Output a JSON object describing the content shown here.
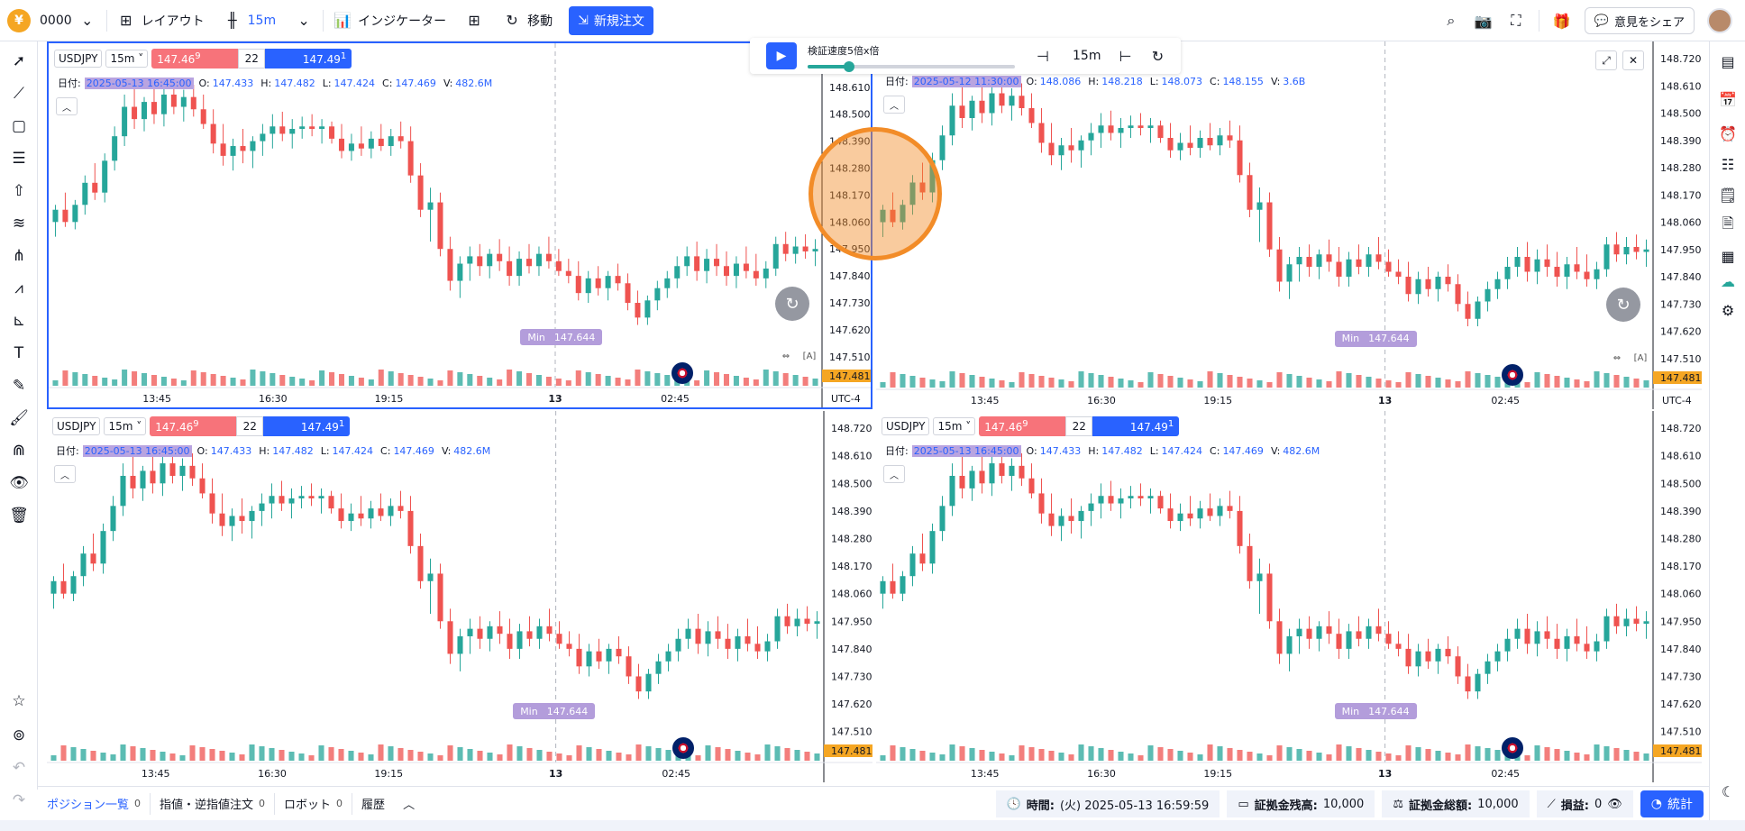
{
  "topbar": {
    "account": "0000",
    "layout": "レイアウト",
    "timeframe": "15m",
    "indicators": "インジケーター",
    "move": "移動",
    "new_order": "新規注文",
    "opinion": "意見をシェア"
  },
  "replay": {
    "speed_label": "検証速度5倍x倍",
    "speed_fraction": 0.2,
    "timeframe": "15m"
  },
  "price_axis_labels": [
    "148.720",
    "148.610",
    "148.500",
    "148.390",
    "148.280",
    "148.170",
    "148.060",
    "147.950",
    "147.840",
    "147.730",
    "147.620",
    "147.510"
  ],
  "time_axis_labels": [
    "13:45",
    "16:30",
    "19:15",
    "13",
    "02:45"
  ],
  "timezone": "UTC-4",
  "panes": [
    {
      "symbol": "USDJPY",
      "tf": "15m",
      "bid": "147.46",
      "bid_sup": "9",
      "spread": "22",
      "ask": "147.49",
      "ask_sup": "1",
      "date_label": "日付:",
      "date": "2025-05-13 16:45:00",
      "o_label": "O:",
      "o": "147.433",
      "h_label": "H:",
      "h": "147.482",
      "l_label": "L:",
      "l": "147.424",
      "c_label": "C:",
      "c": "147.469",
      "v_label": "V:",
      "v": "482.6M",
      "min_label": "Min",
      "min_value": "147.644",
      "last_price": "147.481"
    },
    {
      "symbol": "USDJPY",
      "tf": "15m",
      "bid": "147.46",
      "bid_sup": "9",
      "spread": "22",
      "ask": "147.49",
      "ask_sup": "1",
      "date_label": "日付:",
      "date": "2025-05-12 11:30:00",
      "o_label": "O:",
      "o": "148.086",
      "h_label": "H:",
      "h": "148.218",
      "l_label": "L:",
      "l": "148.073",
      "c_label": "C:",
      "c": "148.155",
      "v_label": "V:",
      "v": "3.6B",
      "min_label": "Min",
      "min_value": "147.644",
      "last_price": "147.481"
    },
    {
      "symbol": "USDJPY",
      "tf": "15m",
      "bid": "147.46",
      "bid_sup": "9",
      "spread": "22",
      "ask": "147.49",
      "ask_sup": "1",
      "date_label": "日付:",
      "date": "2025-05-13 16:45:00",
      "o_label": "O:",
      "o": "147.433",
      "h_label": "H:",
      "h": "147.482",
      "l_label": "L:",
      "l": "147.424",
      "c_label": "C:",
      "c": "147.469",
      "v_label": "V:",
      "v": "482.6M",
      "min_label": "Min",
      "min_value": "147.644",
      "last_price": "147.481"
    },
    {
      "symbol": "USDJPY",
      "tf": "15m",
      "bid": "147.46",
      "bid_sup": "9",
      "spread": "22",
      "ask": "147.49",
      "ask_sup": "1",
      "date_label": "日付:",
      "date": "2025-05-13 16:45:00",
      "o_label": "O:",
      "o": "147.433",
      "h_label": "H:",
      "h": "147.482",
      "l_label": "L:",
      "l": "147.424",
      "c_label": "C:",
      "c": "147.469",
      "v_label": "V:",
      "v": "482.6M",
      "min_label": "Min",
      "min_value": "147.644",
      "last_price": "147.481"
    }
  ],
  "candles": [
    [
      148.06,
      148.13,
      148.0,
      148.11
    ],
    [
      148.11,
      148.18,
      148.04,
      148.06
    ],
    [
      148.06,
      148.15,
      148.03,
      148.13
    ],
    [
      148.13,
      148.25,
      148.09,
      148.22
    ],
    [
      148.22,
      148.3,
      148.15,
      148.18
    ],
    [
      148.18,
      148.34,
      148.14,
      148.31
    ],
    [
      148.31,
      148.45,
      148.27,
      148.41
    ],
    [
      148.41,
      148.58,
      148.37,
      148.53
    ],
    [
      148.53,
      148.62,
      148.44,
      148.48
    ],
    [
      148.48,
      148.57,
      148.43,
      148.55
    ],
    [
      148.55,
      148.64,
      148.46,
      148.5
    ],
    [
      148.5,
      148.62,
      148.45,
      148.58
    ],
    [
      148.58,
      148.65,
      148.5,
      148.53
    ],
    [
      148.53,
      148.6,
      148.47,
      148.57
    ],
    [
      148.57,
      148.62,
      148.49,
      148.52
    ],
    [
      148.52,
      148.58,
      148.44,
      148.46
    ],
    [
      148.46,
      148.52,
      148.34,
      148.38
    ],
    [
      148.38,
      148.46,
      148.29,
      148.33
    ],
    [
      148.33,
      148.4,
      148.27,
      148.37
    ],
    [
      148.37,
      148.44,
      148.3,
      148.35
    ],
    [
      148.35,
      148.41,
      148.28,
      148.39
    ],
    [
      148.39,
      148.46,
      148.33,
      148.42
    ],
    [
      148.42,
      148.5,
      148.36,
      148.45
    ],
    [
      148.45,
      148.51,
      148.39,
      148.42
    ],
    [
      148.42,
      148.48,
      148.36,
      148.44
    ],
    [
      148.44,
      148.49,
      148.4,
      148.45
    ],
    [
      148.45,
      148.5,
      148.41,
      148.44
    ],
    [
      148.44,
      148.48,
      148.38,
      148.45
    ],
    [
      148.45,
      148.47,
      148.38,
      148.4
    ],
    [
      148.4,
      148.46,
      148.32,
      148.35
    ],
    [
      148.35,
      148.42,
      148.31,
      148.38
    ],
    [
      148.38,
      148.45,
      148.33,
      148.36
    ],
    [
      148.36,
      148.43,
      148.32,
      148.4
    ],
    [
      148.4,
      148.46,
      148.35,
      148.37
    ],
    [
      148.37,
      148.44,
      148.33,
      148.41
    ],
    [
      148.41,
      148.47,
      148.36,
      148.39
    ],
    [
      148.39,
      148.45,
      148.22,
      148.25
    ],
    [
      148.25,
      148.3,
      148.08,
      148.11
    ],
    [
      148.11,
      148.2,
      147.98,
      148.14
    ],
    [
      148.14,
      148.18,
      147.92,
      147.95
    ],
    [
      147.95,
      148.0,
      147.78,
      147.82
    ],
    [
      147.82,
      147.92,
      147.75,
      147.89
    ],
    [
      147.89,
      147.96,
      147.82,
      147.92
    ],
    [
      147.92,
      147.97,
      147.84,
      147.88
    ],
    [
      147.88,
      147.95,
      147.83,
      147.93
    ],
    [
      147.93,
      147.99,
      147.86,
      147.9
    ],
    [
      147.9,
      147.96,
      147.8,
      147.84
    ],
    [
      147.84,
      147.94,
      147.8,
      147.91
    ],
    [
      147.91,
      147.97,
      147.85,
      147.88
    ],
    [
      147.88,
      147.96,
      147.84,
      147.93
    ],
    [
      147.93,
      148.0,
      147.87,
      147.9
    ],
    [
      147.9,
      147.95,
      147.84,
      147.86
    ],
    [
      147.86,
      147.91,
      147.81,
      147.84
    ],
    [
      147.84,
      147.9,
      147.74,
      147.77
    ],
    [
      147.77,
      147.86,
      147.73,
      147.83
    ],
    [
      147.83,
      147.88,
      147.76,
      147.79
    ],
    [
      147.79,
      147.86,
      147.74,
      147.84
    ],
    [
      147.84,
      147.89,
      147.78,
      147.81
    ],
    [
      147.81,
      147.85,
      147.7,
      147.73
    ],
    [
      147.73,
      147.78,
      147.64,
      147.67
    ],
    [
      147.67,
      147.76,
      147.64,
      147.74
    ],
    [
      147.74,
      147.82,
      147.7,
      147.79
    ],
    [
      147.79,
      147.86,
      147.75,
      147.83
    ],
    [
      147.83,
      147.92,
      147.79,
      147.88
    ],
    [
      147.88,
      147.96,
      147.84,
      147.92
    ],
    [
      147.92,
      147.98,
      147.82,
      147.86
    ],
    [
      147.86,
      147.95,
      147.81,
      147.91
    ],
    [
      147.91,
      147.97,
      147.84,
      147.88
    ],
    [
      147.88,
      147.94,
      147.8,
      147.84
    ],
    [
      147.84,
      147.92,
      147.79,
      147.89
    ],
    [
      147.89,
      147.96,
      147.83,
      147.86
    ],
    [
      147.86,
      147.93,
      147.8,
      147.83
    ],
    [
      147.83,
      147.9,
      147.79,
      147.87
    ],
    [
      147.87,
      148.0,
      147.84,
      147.97
    ],
    [
      147.97,
      148.02,
      147.9,
      147.93
    ],
    [
      147.93,
      148.0,
      147.89,
      147.96
    ],
    [
      147.96,
      148.01,
      147.91,
      147.94
    ],
    [
      147.94,
      147.99,
      147.88,
      147.95
    ]
  ],
  "bottombar": {
    "positions": "ポジション一覧",
    "positions_count": "0",
    "orders": "指値・逆指値注文",
    "orders_count": "0",
    "robot": "ロボット",
    "robot_count": "0",
    "history": "履歴",
    "time_label": "時間:",
    "time_value": "(火) 2025-05-13 16:59:59",
    "balance_label": "証拠金残高:",
    "balance_value": "10,000",
    "equity_label": "証拠金総額:",
    "equity_value": "10,000",
    "pnl_label": "損益:",
    "pnl_value": "0",
    "stats": "統計"
  },
  "colors": {
    "up": "#26a69a",
    "down": "#ef5350",
    "accent": "#2962ff",
    "highlight": "#f28c28"
  }
}
